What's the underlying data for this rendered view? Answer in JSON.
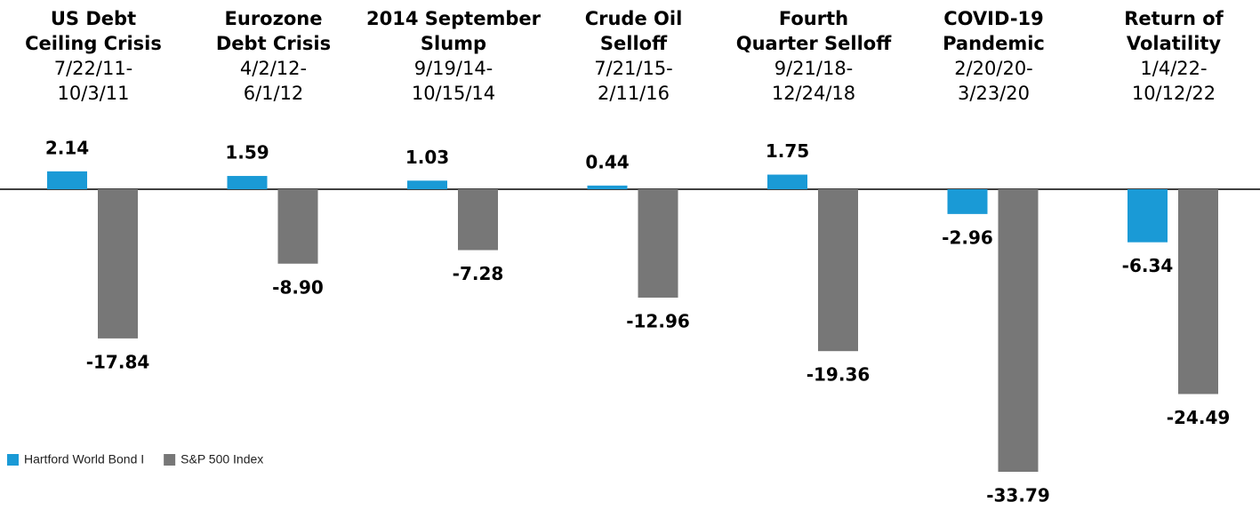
{
  "chart_data": {
    "type": "bar",
    "categories": [
      [
        "US Debt",
        "Ceiling Crisis"
      ],
      [
        "Eurozone",
        "Debt Crisis"
      ],
      [
        "2014 September",
        "Slump"
      ],
      [
        "Crude Oil",
        "Selloff"
      ],
      [
        "Fourth",
        "Quarter Selloff"
      ],
      [
        "COVID-19",
        "Pandemic"
      ],
      [
        "Return of",
        "Volatility"
      ]
    ],
    "periods": [
      [
        "7/22/11-",
        "10/3/11"
      ],
      [
        "4/2/12-",
        "6/1/12"
      ],
      [
        "9/19/14-",
        "10/15/14"
      ],
      [
        "7/21/15-",
        "2/11/16"
      ],
      [
        "9/21/18-",
        "12/24/18"
      ],
      [
        "2/20/20-",
        "3/23/20"
      ],
      [
        "1/4/22-",
        "10/12/22"
      ]
    ],
    "series": [
      {
        "name": "Hartford World Bond I",
        "color": "#1a9ad6",
        "values": [
          2.14,
          1.59,
          1.03,
          0.44,
          1.75,
          -2.96,
          -6.34
        ],
        "value_labels": [
          "2.14",
          "1.59",
          "1.03",
          "0.44",
          "1.75",
          "-2.96",
          "-6.34"
        ]
      },
      {
        "name": "S&P 500 Index",
        "color": "#777777",
        "values": [
          -17.84,
          -8.9,
          -7.28,
          -12.96,
          -19.36,
          -33.79,
          -24.49
        ],
        "value_labels": [
          "-17.84",
          "-8.90",
          "-7.28",
          "-12.96",
          "-19.36",
          "-33.79",
          "-24.49"
        ]
      }
    ]
  }
}
